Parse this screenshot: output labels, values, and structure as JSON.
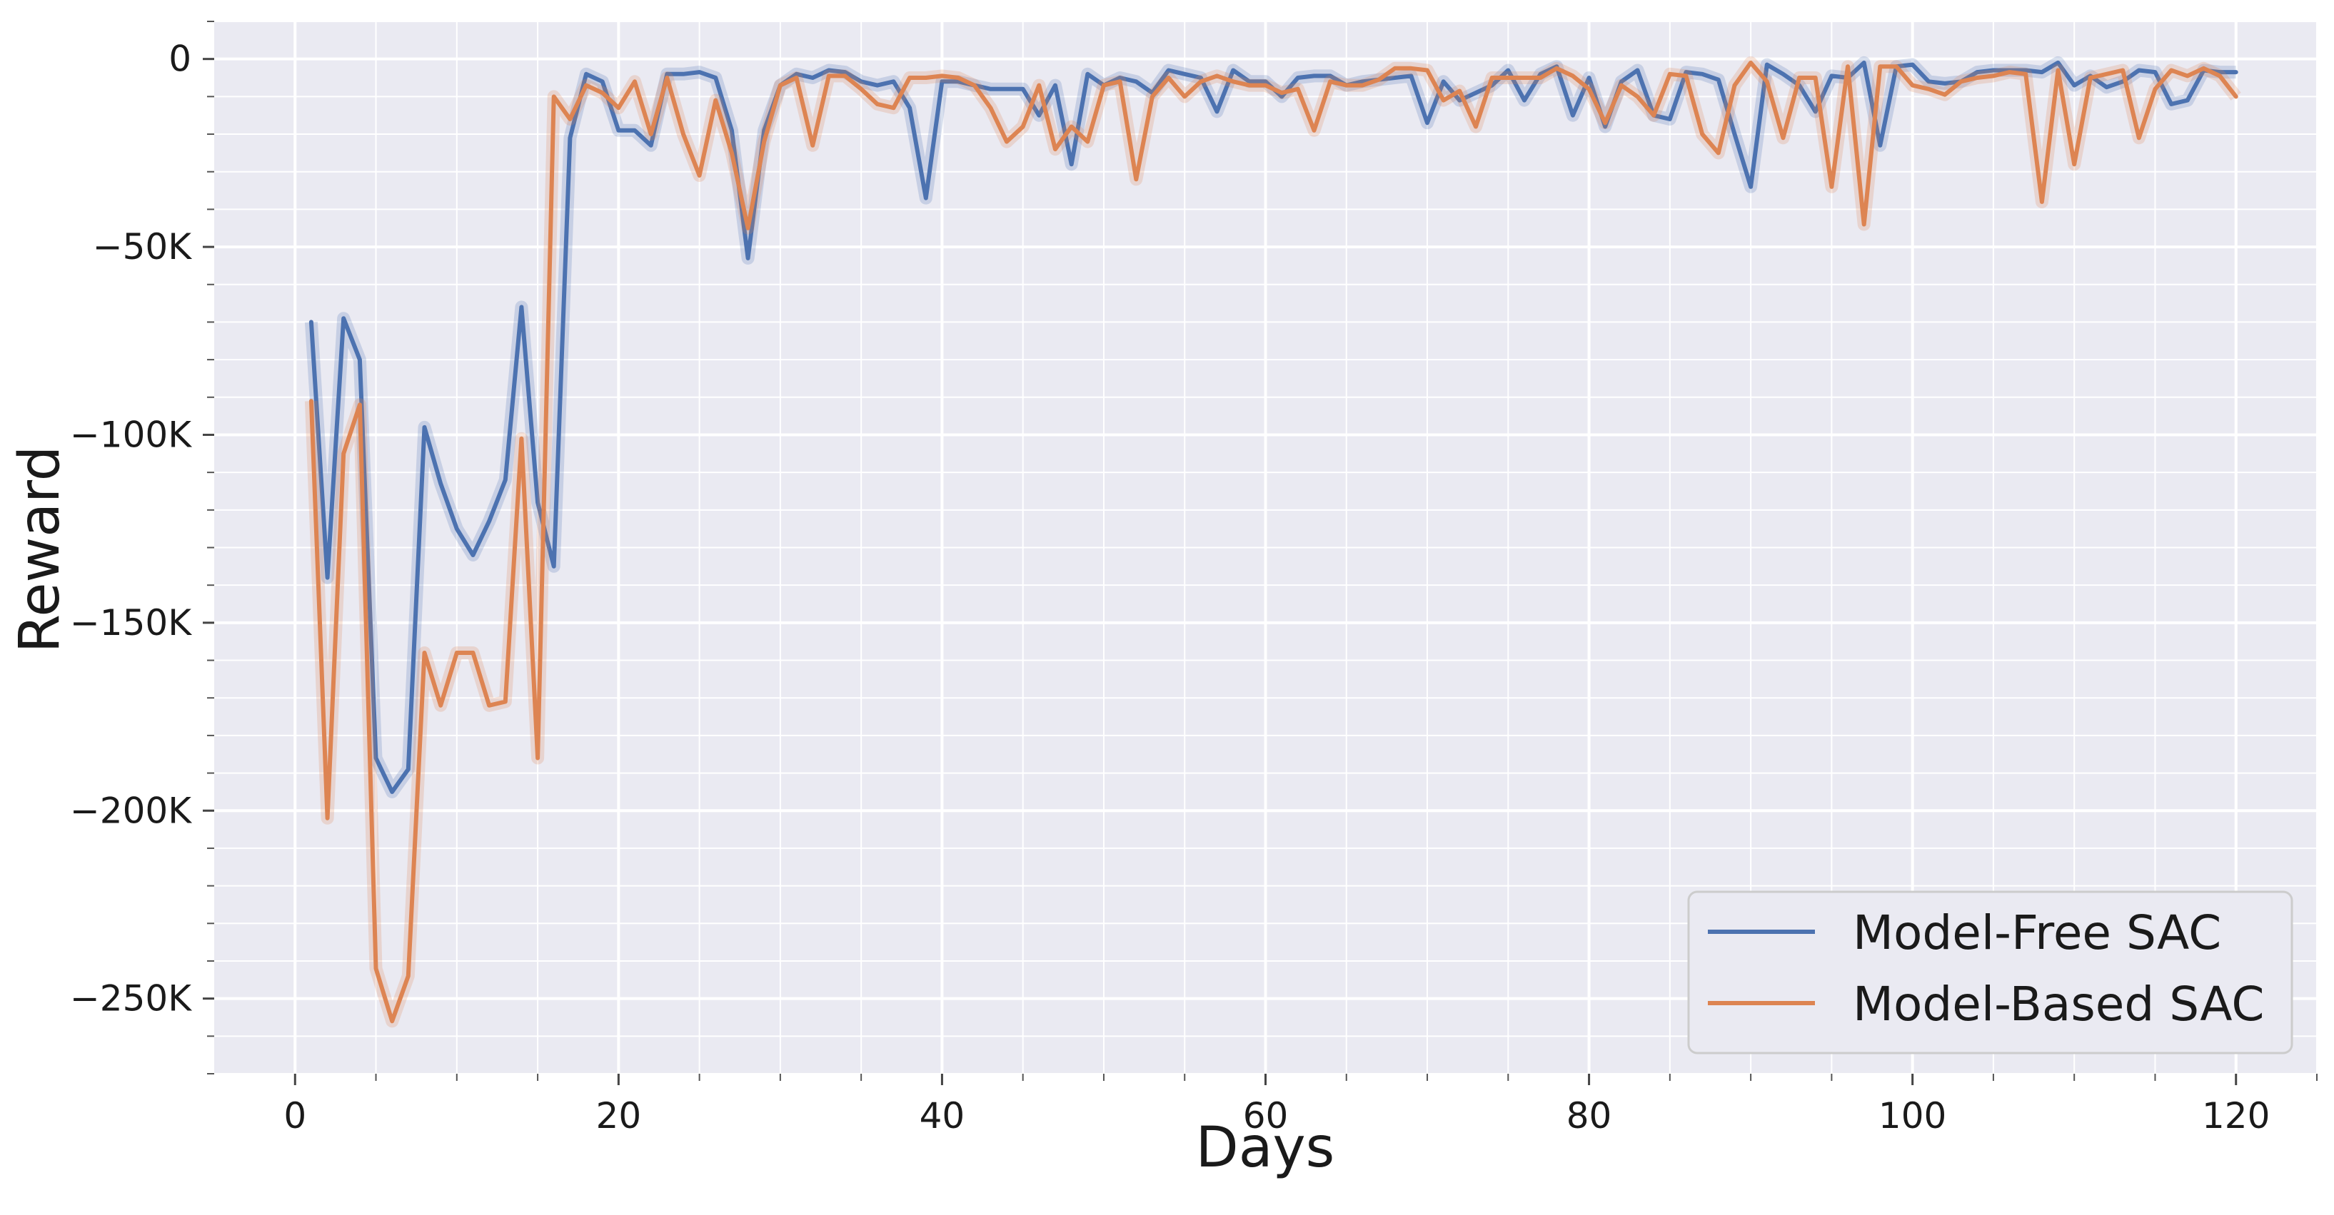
{
  "chart_data": {
    "type": "line",
    "title": "",
    "xlabel": "Days",
    "ylabel": "Reward",
    "xlim": [
      -5,
      125
    ],
    "ylim": [
      -270000,
      10000
    ],
    "grid": true,
    "legend_position": "lower-right",
    "x_ticks": [
      0,
      20,
      40,
      60,
      80,
      100,
      120
    ],
    "x_tick_labels": [
      "0",
      "20",
      "40",
      "60",
      "80",
      "100",
      "120"
    ],
    "y_ticks": [
      0,
      -50000,
      -100000,
      -150000,
      -200000,
      -250000
    ],
    "y_tick_labels": [
      "0",
      "−50K",
      "−100K",
      "−150K",
      "−200K",
      "−250K"
    ],
    "x": [
      1,
      2,
      3,
      4,
      5,
      6,
      7,
      8,
      9,
      10,
      11,
      12,
      13,
      14,
      15,
      16,
      17,
      18,
      19,
      20,
      21,
      22,
      23,
      24,
      25,
      26,
      27,
      28,
      29,
      30,
      31,
      32,
      33,
      34,
      35,
      36,
      37,
      38,
      39,
      40,
      41,
      42,
      43,
      44,
      45,
      46,
      47,
      48,
      49,
      50,
      51,
      52,
      53,
      54,
      55,
      56,
      57,
      58,
      59,
      60,
      61,
      62,
      63,
      64,
      65,
      66,
      67,
      68,
      69,
      70,
      71,
      72,
      73,
      74,
      75,
      76,
      77,
      78,
      79,
      80,
      81,
      82,
      83,
      84,
      85,
      86,
      87,
      88,
      89,
      90,
      91,
      92,
      93,
      94,
      95,
      96,
      97,
      98,
      99,
      100,
      101,
      102,
      103,
      104,
      105,
      106,
      107,
      108,
      109,
      110,
      111,
      112,
      113,
      114,
      115,
      116,
      117,
      118,
      119,
      120
    ],
    "series": [
      {
        "name": "Model-Free SAC",
        "color": "#4c72b0",
        "values": [
          -70000,
          -138000,
          -69000,
          -80000,
          -186000,
          -195000,
          -189000,
          -98000,
          -113000,
          -125000,
          -132000,
          -123000,
          -112000,
          -66000,
          -118000,
          -135000,
          -21000,
          -4000,
          -6000,
          -19000,
          -19000,
          -23000,
          -4000,
          -4000,
          -3500,
          -5000,
          -19000,
          -53000,
          -19000,
          -7000,
          -4000,
          -5000,
          -3000,
          -3500,
          -6000,
          -7000,
          -6000,
          -13000,
          -37000,
          -6000,
          -6000,
          -7000,
          -8000,
          -8000,
          -8000,
          -15000,
          -7000,
          -28000,
          -4000,
          -7000,
          -5000,
          -6000,
          -9000,
          -3000,
          -4000,
          -5000,
          -14000,
          -3000,
          -6000,
          -6000,
          -10000,
          -5000,
          -4500,
          -4500,
          -7000,
          -6000,
          -5500,
          -5000,
          -4500,
          -17000,
          -6000,
          -11000,
          -9000,
          -7000,
          -3000,
          -11000,
          -4000,
          -2000,
          -15000,
          -5000,
          -18000,
          -6000,
          -3000,
          -15000,
          -16000,
          -3500,
          -4000,
          -5500,
          -20000,
          -34000,
          -1500,
          -4000,
          -7000,
          -14000,
          -4500,
          -5000,
          -1000,
          -23000,
          -2000,
          -1500,
          -6000,
          -6500,
          -6000,
          -3500,
          -3000,
          -3000,
          -3000,
          -3500,
          -1000,
          -7000,
          -4500,
          -7500,
          -6000,
          -3000,
          -3500,
          -12000,
          -11000,
          -3000,
          -3500,
          -3500
        ]
      },
      {
        "name": "Model-Based SAC",
        "color": "#dd8452",
        "values": [
          -91000,
          -202000,
          -105000,
          -92000,
          -242000,
          -256000,
          -244000,
          -158000,
          -172000,
          -158000,
          -158000,
          -172000,
          -171000,
          -101000,
          -186000,
          -10000,
          -16000,
          -7000,
          -9000,
          -13000,
          -6000,
          -20000,
          -5000,
          -20000,
          -31000,
          -11000,
          -25000,
          -45000,
          -22000,
          -7000,
          -5000,
          -23000,
          -4500,
          -4500,
          -8000,
          -12000,
          -13000,
          -5000,
          -5000,
          -4500,
          -5000,
          -7000,
          -13000,
          -22000,
          -18000,
          -7000,
          -24000,
          -18000,
          -22000,
          -7000,
          -6000,
          -32000,
          -10000,
          -5000,
          -10000,
          -6000,
          -4500,
          -6000,
          -7000,
          -7000,
          -9000,
          -8000,
          -19000,
          -6000,
          -7000,
          -7000,
          -5500,
          -2500,
          -2500,
          -3000,
          -11000,
          -8500,
          -18000,
          -5000,
          -5000,
          -5000,
          -5000,
          -2500,
          -4500,
          -8000,
          -17000,
          -7000,
          -10000,
          -15000,
          -4000,
          -4500,
          -20000,
          -25000,
          -7000,
          -1000,
          -6000,
          -21000,
          -5000,
          -5000,
          -34000,
          -2000,
          -44000,
          -2000,
          -2000,
          -7000,
          -8000,
          -9500,
          -6000,
          -5000,
          -4500,
          -3500,
          -4000,
          -38000,
          -3000,
          -28000,
          -5000,
          -4000,
          -3000,
          -21000,
          -8000,
          -3000,
          -4500,
          -2500,
          -4500,
          -10000
        ]
      }
    ]
  }
}
